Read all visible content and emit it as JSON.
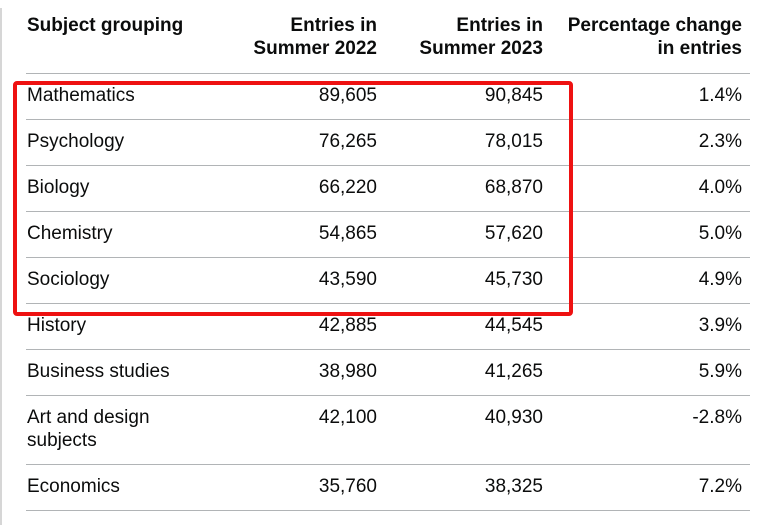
{
  "colors": {
    "text": "#0b0c0c",
    "row_border": "#b1b4b6",
    "page_edge": "#d6d6d6",
    "highlight": "#ee1111"
  },
  "table": {
    "columns": [
      {
        "id": "subject",
        "label": "Subject grouping",
        "align": "left"
      },
      {
        "id": "entries_2022",
        "label": "Entries in\nSummer 2022",
        "align": "right"
      },
      {
        "id": "entries_2023",
        "label": "Entries in\nSummer 2023",
        "align": "right"
      },
      {
        "id": "pct_change",
        "label": "Percentage change\nin entries",
        "align": "right"
      }
    ],
    "rows": [
      {
        "subject": "Mathematics",
        "entries_2022": "89,605",
        "entries_2023": "90,845",
        "pct_change": "1.4%",
        "highlighted": true
      },
      {
        "subject": "Psychology",
        "entries_2022": "76,265",
        "entries_2023": "78,015",
        "pct_change": "2.3%",
        "highlighted": true
      },
      {
        "subject": "Biology",
        "entries_2022": "66,220",
        "entries_2023": "68,870",
        "pct_change": "4.0%",
        "highlighted": true
      },
      {
        "subject": "Chemistry",
        "entries_2022": "54,865",
        "entries_2023": "57,620",
        "pct_change": "5.0%",
        "highlighted": true
      },
      {
        "subject": "Sociology",
        "entries_2022": "43,590",
        "entries_2023": "45,730",
        "pct_change": "4.9%",
        "highlighted": true
      },
      {
        "subject": "History",
        "entries_2022": "42,885",
        "entries_2023": "44,545",
        "pct_change": "3.9%",
        "highlighted": false
      },
      {
        "subject": "Business studies",
        "entries_2022": "38,980",
        "entries_2023": "41,265",
        "pct_change": "5.9%",
        "highlighted": false
      },
      {
        "subject": "Art and design\nsubjects",
        "entries_2022": "42,100",
        "entries_2023": "40,930",
        "pct_change": "-2.8%",
        "highlighted": false
      },
      {
        "subject": "Economics",
        "entries_2022": "35,760",
        "entries_2023": "38,325",
        "pct_change": "7.2%",
        "highlighted": false
      }
    ]
  },
  "annotation": {
    "type": "red-highlight-box",
    "description": "Red rectangle drawn over the top five rows (Mathematics to Sociology), covering the subject and both entries columns",
    "color": "#ee1111"
  },
  "chart_data": {
    "type": "table",
    "title": "",
    "categories": [
      "Mathematics",
      "Psychology",
      "Biology",
      "Chemistry",
      "Sociology",
      "History",
      "Business studies",
      "Art and design subjects",
      "Economics"
    ],
    "series": [
      {
        "name": "Entries in Summer 2022",
        "values": [
          89605,
          76265,
          66220,
          54865,
          43590,
          42885,
          38980,
          42100,
          35760
        ]
      },
      {
        "name": "Entries in Summer 2023",
        "values": [
          90845,
          78015,
          68870,
          57620,
          45730,
          44545,
          41265,
          40930,
          38325
        ]
      },
      {
        "name": "Percentage change in entries",
        "values": [
          1.4,
          2.3,
          4.0,
          5.0,
          4.9,
          3.9,
          5.9,
          -2.8,
          7.2
        ]
      }
    ]
  }
}
